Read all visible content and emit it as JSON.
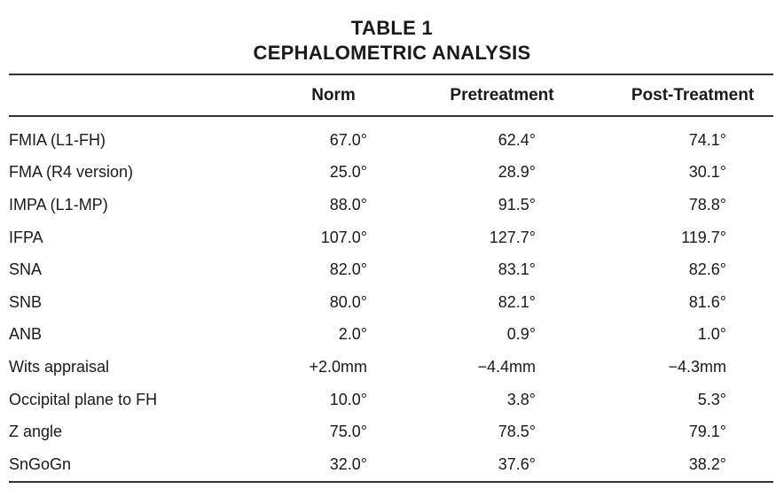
{
  "title": {
    "line1": "TABLE 1",
    "line2": "CEPHALOMETRIC ANALYSIS"
  },
  "table": {
    "headers": [
      "",
      "Norm",
      "Pretreatment",
      "Post-Treatment"
    ],
    "rows": [
      {
        "measure": "FMIA (L1-FH)",
        "norm": "67.0°",
        "pre": "62.4°",
        "post": "74.1°"
      },
      {
        "measure": "FMA (R4 version)",
        "norm": "25.0°",
        "pre": "28.9°",
        "post": "30.1°"
      },
      {
        "measure": "IMPA (L1-MP)",
        "norm": "88.0°",
        "pre": "91.5°",
        "post": "78.8°"
      },
      {
        "measure": "IFPA",
        "norm": "107.0°",
        "pre": "127.7°",
        "post": "119.7°"
      },
      {
        "measure": "SNA",
        "norm": "82.0°",
        "pre": "83.1°",
        "post": "82.6°"
      },
      {
        "measure": "SNB",
        "norm": "80.0°",
        "pre": "82.1°",
        "post": "81.6°"
      },
      {
        "measure": "ANB",
        "norm": "2.0°",
        "pre": "0.9°",
        "post": "1.0°"
      },
      {
        "measure": "Wits appraisal",
        "norm": "+2.0mm",
        "pre": "−4.4mm",
        "post": "−4.3mm"
      },
      {
        "measure": "Occipital plane to FH",
        "norm": "10.0°",
        "pre": "3.8°",
        "post": "5.3°"
      },
      {
        "measure": "Z angle",
        "norm": "75.0°",
        "pre": "78.5°",
        "post": "79.1°"
      },
      {
        "measure": "SnGoGn",
        "norm": "32.0°",
        "pre": "37.6°",
        "post": "38.2°"
      }
    ]
  }
}
